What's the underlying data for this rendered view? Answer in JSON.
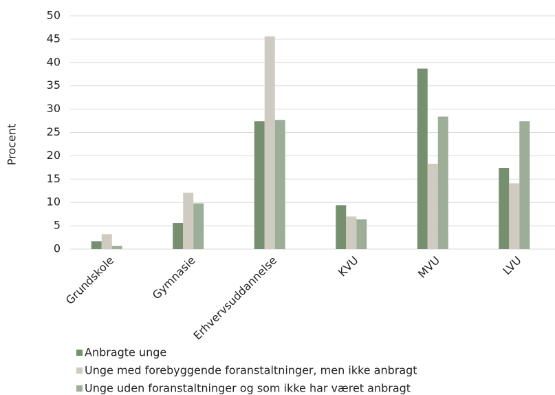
{
  "chart_data": {
    "type": "bar",
    "y_label": "Procent",
    "categories": [
      "Grundskole",
      "Gymnasie",
      "Erhvervsuddannelse",
      "KVU",
      "MVU",
      "LVU"
    ],
    "series": [
      {
        "name": "Anbragte unge",
        "color": "#76906f",
        "values": [
          1.7,
          5.6,
          27.4,
          9.4,
          38.7,
          17.4
        ]
      },
      {
        "name": "Unge med forebyggende foranstaltninger, men ikke anbragt",
        "color": "#cfcbc1",
        "values": [
          3.2,
          12.1,
          45.6,
          7.0,
          18.3,
          14.1
        ]
      },
      {
        "name": "Unge uden foranstaltninger og som ikke har været anbragt",
        "color": "#9dae98",
        "values": [
          0.7,
          9.8,
          27.7,
          6.4,
          28.4,
          27.4
        ]
      }
    ],
    "ylim": [
      0,
      50
    ],
    "yticks": [
      0,
      5,
      10,
      15,
      20,
      25,
      30,
      35,
      40,
      45,
      50
    ],
    "grid": true
  }
}
